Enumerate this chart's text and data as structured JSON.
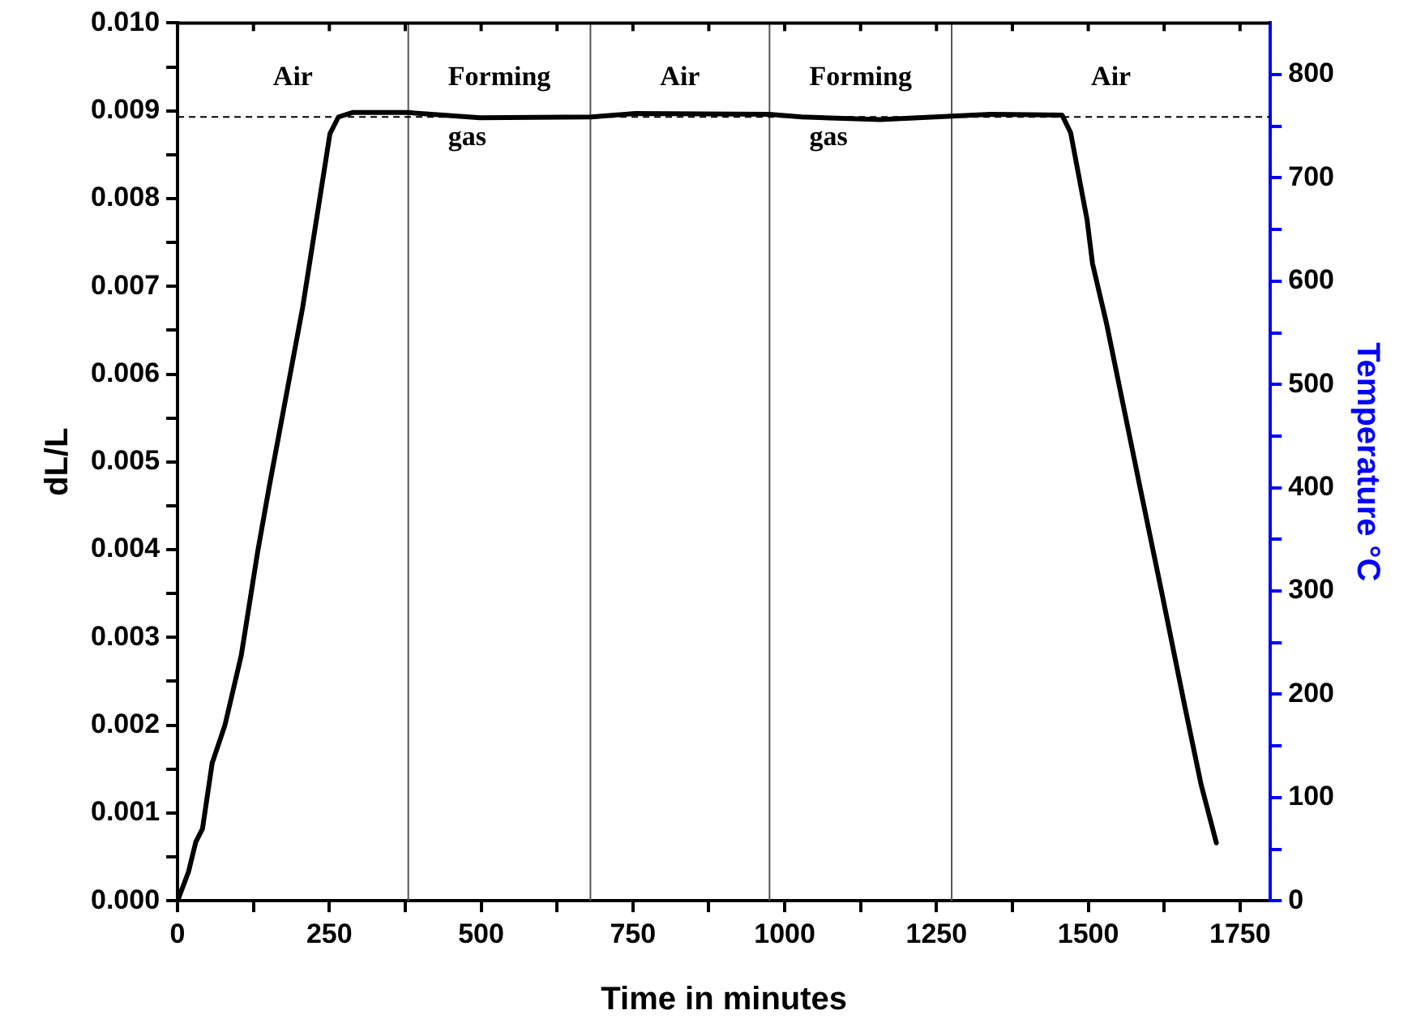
{
  "chart_data": {
    "type": "line",
    "xlabel": "Time in minutes",
    "ylabel": "dL/L",
    "y2label": "Temperature °C",
    "series": [
      {
        "color": "#000000",
        "marker": "none",
        "line_style": "solid",
        "x": [
          0,
          18,
          30,
          41,
          57,
          78,
          105,
          132,
          151,
          206,
          251,
          265,
          288,
          379,
          498,
          682,
          754,
          974,
          1028,
          1157,
          1339,
          1457,
          1471,
          1498,
          1507,
          1530,
          1585,
          1622,
          1658,
          1686,
          1711
        ],
        "values": [
          0,
          0.00033,
          0.00067,
          0.00082,
          0.00157,
          0.002,
          0.0028,
          0.00398,
          0.00472,
          0.00676,
          0.00874,
          0.00893,
          0.00898,
          0.00898,
          0.00892,
          0.00893,
          0.00897,
          0.00896,
          0.00893,
          0.0089,
          0.00896,
          0.00895,
          0.00875,
          0.00776,
          0.00726,
          0.00658,
          0.00472,
          0.00348,
          0.00225,
          0.00132,
          0.00066
        ]
      }
    ],
    "xlim": [
      0,
      1800
    ],
    "xticks": [
      0,
      {
        "value": 125,
        "label": null
      },
      250,
      {
        "value": 375,
        "label": null
      },
      500,
      {
        "value": 625,
        "label": null
      },
      750,
      {
        "value": 875,
        "label": null
      },
      1000,
      {
        "value": 1125,
        "label": null
      },
      1250,
      {
        "value": 1375,
        "label": null
      },
      1500,
      {
        "value": 1625,
        "label": null
      },
      1750
    ],
    "ylim": [
      0,
      0.01
    ],
    "yticks": [
      {
        "value": 0,
        "label": "0.000"
      },
      {
        "value": 0.0005,
        "label": null
      },
      {
        "value": 0.001,
        "label": "0.001"
      },
      {
        "value": 0.0015,
        "label": null
      },
      {
        "value": 0.002,
        "label": "0.002"
      },
      {
        "value": 0.0025,
        "label": null
      },
      {
        "value": 0.003,
        "label": "0.003"
      },
      {
        "value": 0.0035,
        "label": null
      },
      {
        "value": 0.004,
        "label": "0.004"
      },
      {
        "value": 0.0045,
        "label": null
      },
      {
        "value": 0.005,
        "label": "0.005"
      },
      {
        "value": 0.0055,
        "label": null
      },
      {
        "value": 0.006,
        "label": "0.006"
      },
      {
        "value": 0.0065,
        "label": null
      },
      {
        "value": 0.007,
        "label": "0.007"
      },
      {
        "value": 0.0075,
        "label": null
      },
      {
        "value": 0.008,
        "label": "0.008"
      },
      {
        "value": 0.0085,
        "label": null
      },
      {
        "value": 0.009,
        "label": "0.009"
      },
      {
        "value": 0.0095,
        "label": null
      },
      {
        "value": 0.01,
        "label": "0.010"
      }
    ],
    "y2lim": [
      0,
      850
    ],
    "y2ticks": [
      0,
      {
        "value": 50,
        "label": null
      },
      100,
      {
        "value": 150,
        "label": null
      },
      200,
      {
        "value": 250,
        "label": null
      },
      300,
      {
        "value": 350,
        "label": null
      },
      400,
      {
        "value": 450,
        "label": null
      },
      500,
      {
        "value": 550,
        "label": null
      },
      600,
      {
        "value": 650,
        "label": null
      },
      700,
      {
        "value": 750,
        "label": null
      },
      800
    ],
    "grid": false,
    "ref_lines": [
      {
        "axis": "x",
        "value": 380,
        "color": "#555555"
      },
      {
        "axis": "x",
        "value": 680,
        "color": "#555555"
      },
      {
        "axis": "x",
        "value": 975,
        "color": "#555555"
      },
      {
        "axis": "x",
        "value": 1275,
        "color": "#555555"
      },
      {
        "axis": "y",
        "value": 0.00893,
        "color": "#000000",
        "line_style": "dashed"
      }
    ],
    "annotations": [
      "Air",
      "Forming gas",
      "Air",
      "Forming gas",
      "Air"
    ]
  }
}
